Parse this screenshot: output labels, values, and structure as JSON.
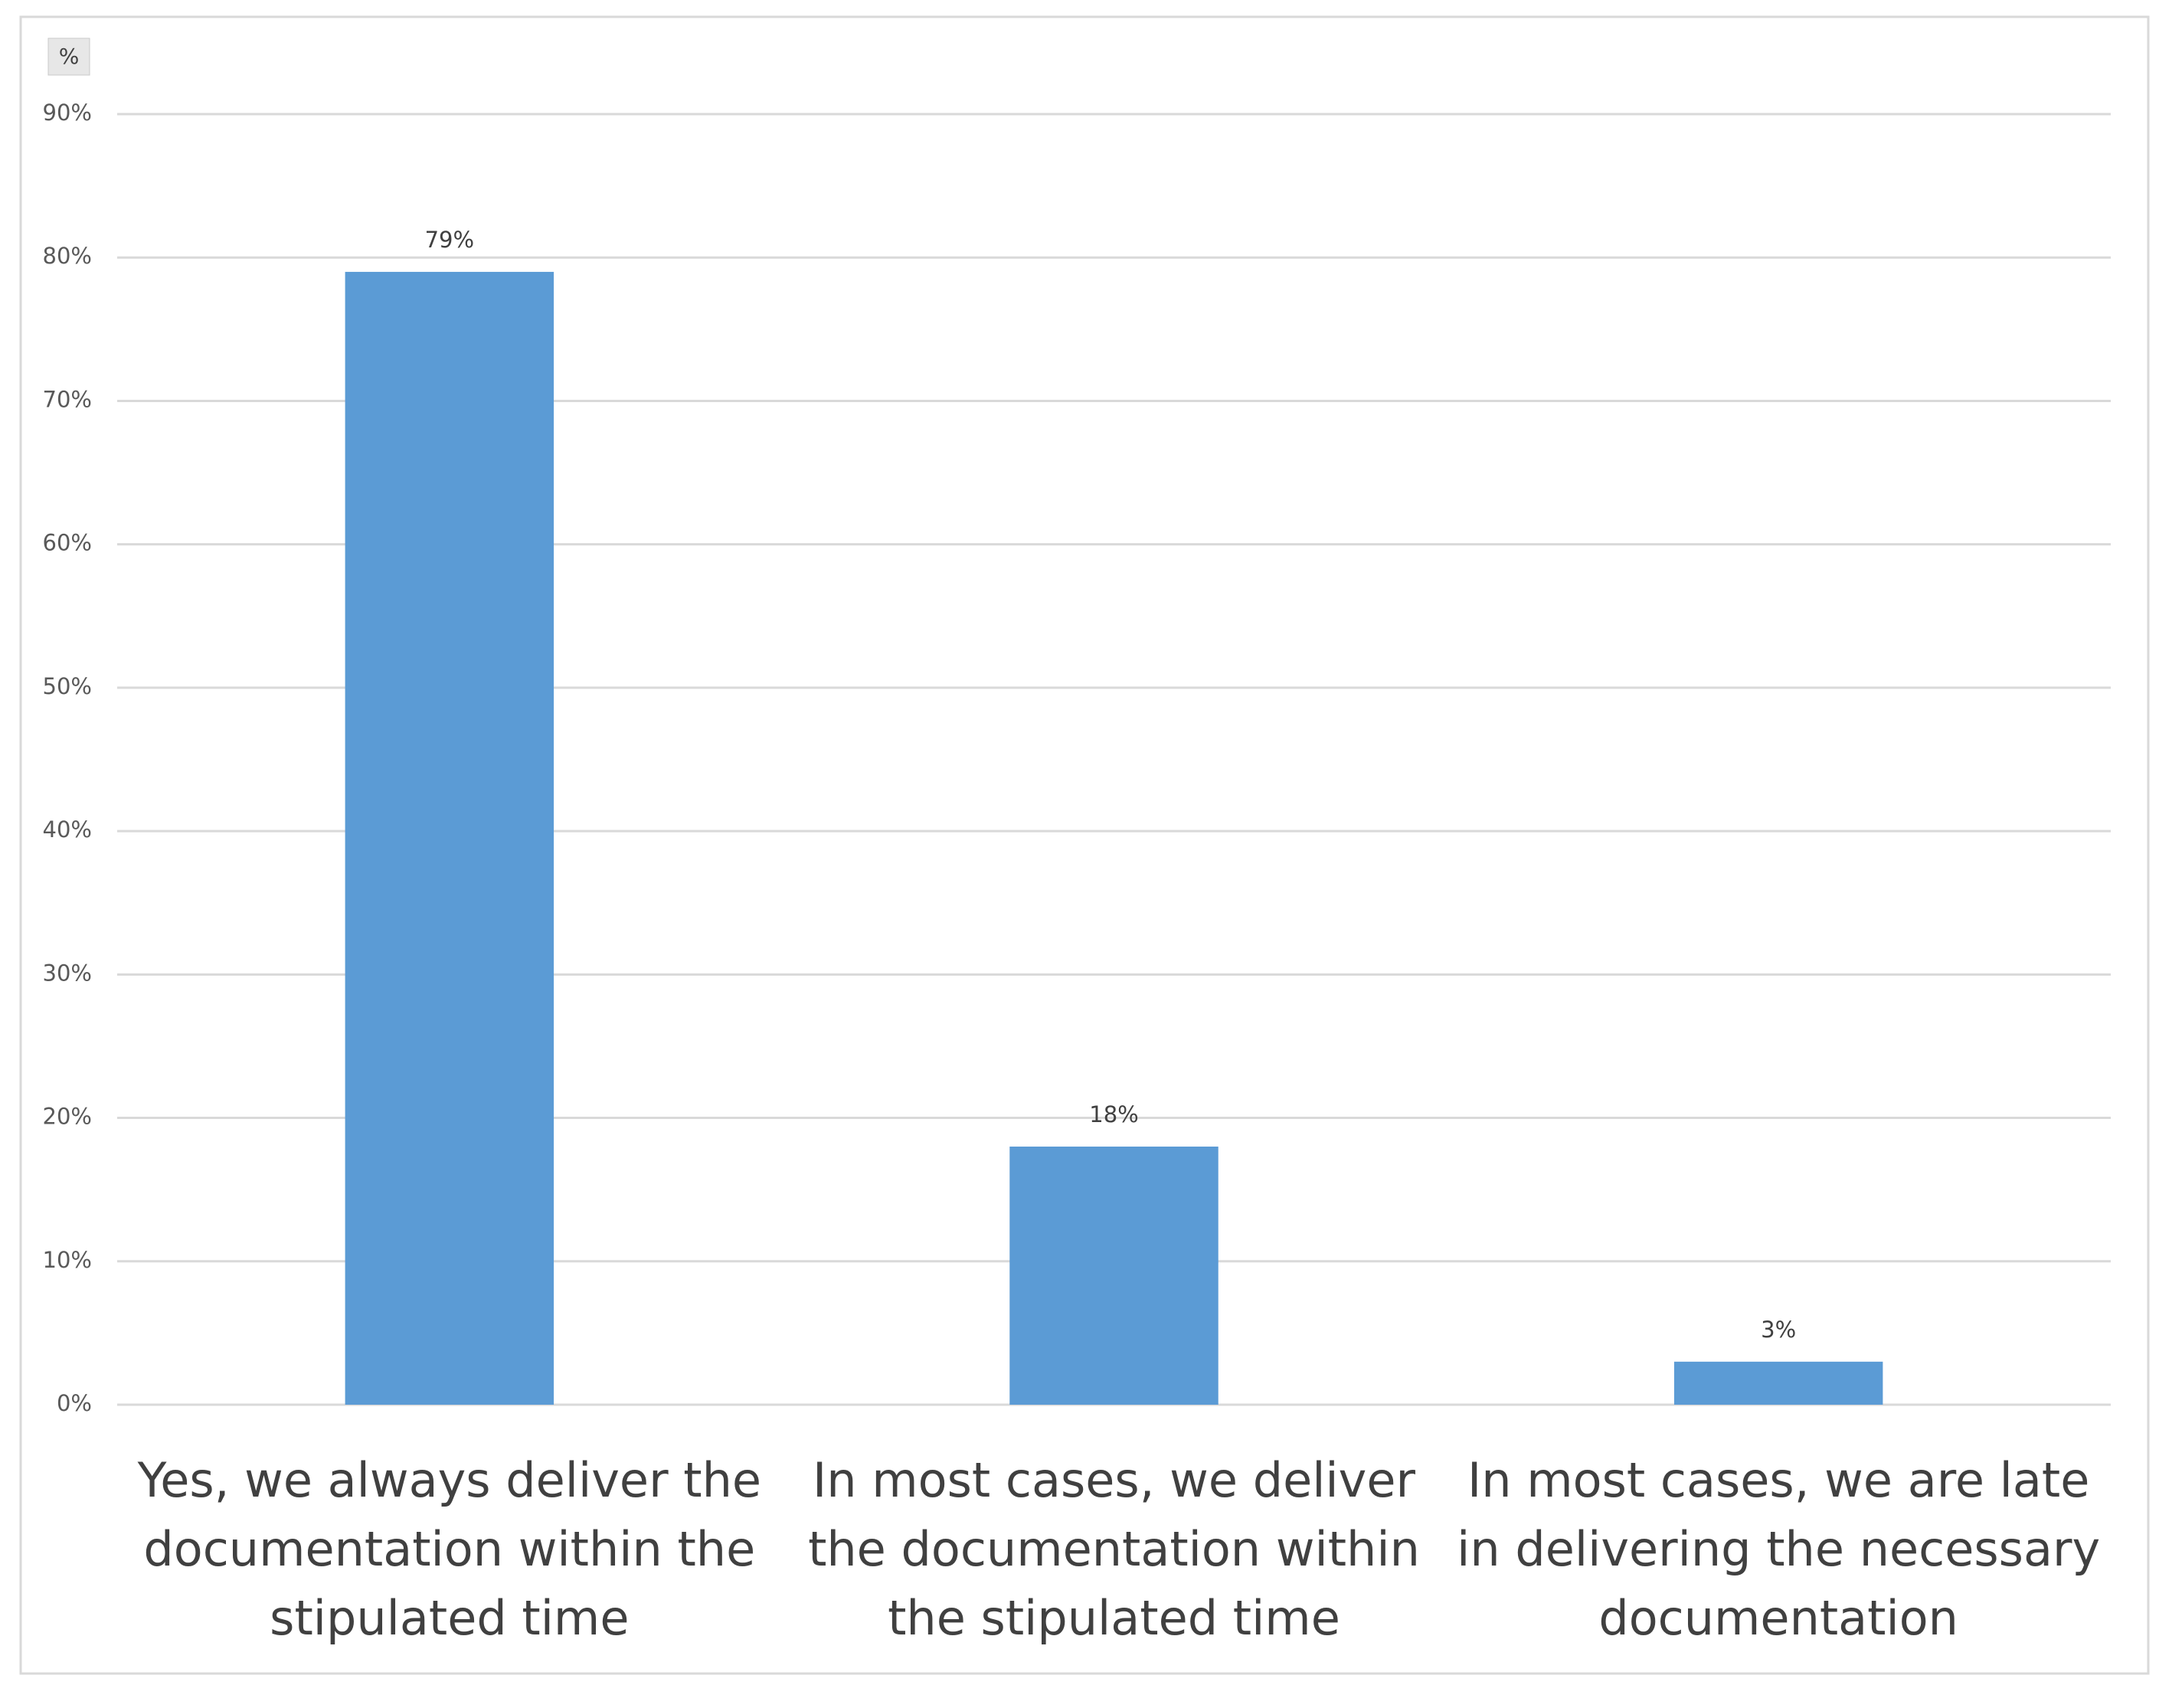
{
  "chart_data": {
    "type": "bar",
    "y_axis_label": "%",
    "categories": [
      "Yes, we always deliver the documentation within the stipulated time",
      "In most cases, we deliver the documentation within the stipulated time",
      "In most cases, we are late in delivering the necessary documentation"
    ],
    "values": [
      79,
      18,
      3
    ],
    "value_labels": [
      "79%",
      "18%",
      "3%"
    ],
    "color": "#5b9bd5",
    "ylim": [
      0,
      90
    ],
    "yticks": [
      {
        "value": 0,
        "label": "0%"
      },
      {
        "value": 10,
        "label": "10%"
      },
      {
        "value": 20,
        "label": "20%"
      },
      {
        "value": 30,
        "label": "30%"
      },
      {
        "value": 40,
        "label": "40%"
      },
      {
        "value": 50,
        "label": "50%"
      },
      {
        "value": 60,
        "label": "60%"
      },
      {
        "value": 70,
        "label": "70%"
      },
      {
        "value": 80,
        "label": "80%"
      },
      {
        "value": 90,
        "label": "90%"
      }
    ],
    "grid": true
  }
}
